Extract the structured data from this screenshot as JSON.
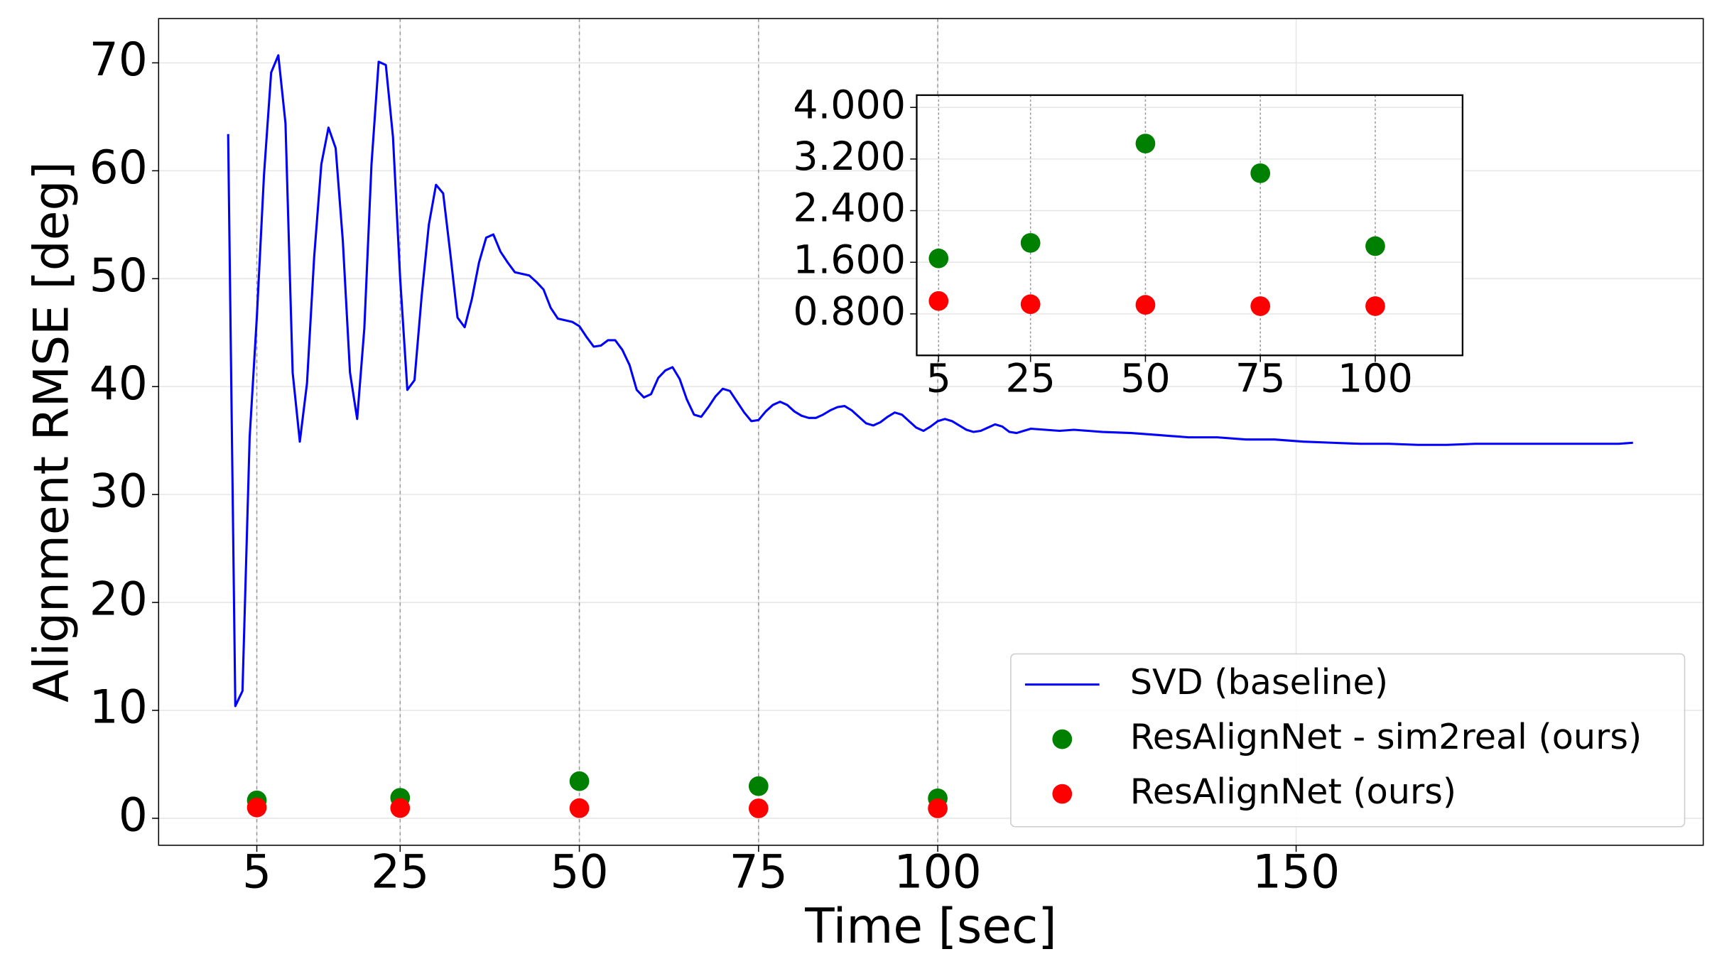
{
  "chart_data": [
    {
      "type": "line",
      "xlabel": "Time [sec]",
      "ylabel": "Alignment RMSE [deg]",
      "xlim": [
        -8.7,
        206.8
      ],
      "ylim": [
        -2.5,
        74.1
      ],
      "xticks": [
        5,
        25,
        50,
        75,
        100,
        150
      ],
      "yticks": [
        0,
        10,
        20,
        30,
        40,
        50,
        60,
        70
      ],
      "grid": true,
      "vlines": [
        5,
        25,
        50,
        75,
        100
      ],
      "legend": "lower right",
      "series": [
        {
          "name": "SVD (baseline)",
          "type": "line",
          "color": "#0000ff",
          "x": [
            1,
            2,
            3,
            4,
            5,
            6,
            7,
            8,
            9,
            10,
            11,
            12,
            13,
            14,
            15,
            16,
            17,
            18,
            19,
            20,
            21,
            22,
            23,
            24,
            25,
            26,
            27,
            28,
            29,
            30,
            31,
            32,
            33,
            34,
            35,
            36,
            37,
            38,
            39,
            40,
            41,
            43,
            44,
            45,
            46,
            47,
            49,
            50,
            51,
            52,
            53,
            54,
            55,
            56,
            57,
            58,
            59,
            60,
            61,
            62,
            63,
            64,
            65,
            66,
            67,
            68,
            69,
            70,
            71,
            72,
            73,
            74,
            75,
            76,
            77,
            78,
            79,
            80,
            81,
            82,
            83,
            84,
            85,
            86,
            87,
            88,
            89,
            90,
            91,
            92,
            93,
            94,
            95,
            96,
            97,
            98,
            99,
            100,
            101,
            102,
            103,
            104,
            105,
            106,
            107,
            108,
            109,
            110,
            111,
            112,
            113,
            115,
            117,
            119,
            121,
            123,
            127,
            131,
            135,
            139,
            143,
            147,
            151,
            155,
            159,
            163,
            167,
            171,
            175,
            179,
            183,
            187,
            191,
            195,
            197
          ],
          "values": [
            63.4,
            10.4,
            11.8,
            35.3,
            46.4,
            59.6,
            69.1,
            70.7,
            64.4,
            41.3,
            34.9,
            40.3,
            52,
            60.6,
            64,
            62.1,
            53.5,
            41.3,
            37,
            45.4,
            60.6,
            70.1,
            69.8,
            63.1,
            50,
            39.7,
            40.6,
            48.4,
            55,
            58.7,
            57.9,
            52.3,
            46.4,
            45.5,
            48.1,
            51.5,
            53.8,
            54.1,
            52.5,
            51.5,
            50.6,
            50.3,
            49.7,
            49,
            47.3,
            46.3,
            46,
            45.6,
            44.6,
            43.7,
            43.8,
            44.3,
            44.3,
            43.4,
            42,
            39.7,
            39,
            39.3,
            40.8,
            41.5,
            41.8,
            40.7,
            38.8,
            37.4,
            37.2,
            38.1,
            39.1,
            39.8,
            39.6,
            38.6,
            37.6,
            36.8,
            36.9,
            37.7,
            38.3,
            38.6,
            38.3,
            37.7,
            37.3,
            37.1,
            37.1,
            37.4,
            37.8,
            38.1,
            38.2,
            37.8,
            37.2,
            36.6,
            36.4,
            36.7,
            37.2,
            37.6,
            37.4,
            36.8,
            36.2,
            35.9,
            36.3,
            36.8,
            37,
            36.8,
            36.4,
            36,
            35.8,
            35.9,
            36.2,
            36.5,
            36.3,
            35.8,
            35.7,
            35.9,
            36.1,
            36,
            35.9,
            36,
            35.9,
            35.8,
            35.7,
            35.5,
            35.3,
            35.3,
            35.1,
            35.1,
            34.9,
            34.8,
            34.7,
            34.7,
            34.6,
            34.6,
            34.7,
            34.7,
            34.7,
            34.7,
            34.7,
            34.7,
            34.8
          ]
        },
        {
          "name": "ResAlignNet - sim2real (ours)",
          "type": "scatter",
          "color": "#008000",
          "x": [
            5,
            25,
            50,
            75,
            100
          ],
          "values": [
            1.66,
            1.9,
            3.44,
            2.98,
            1.85
          ]
        },
        {
          "name": "ResAlignNet (ours)",
          "type": "scatter",
          "color": "#ff0000",
          "x": [
            5,
            25,
            50,
            75,
            100
          ],
          "values": [
            1.0,
            0.95,
            0.94,
            0.92,
            0.92
          ]
        }
      ]
    },
    {
      "type": "scatter",
      "xlim": [
        0.24,
        119
      ],
      "ylim": [
        0.157,
        4.19
      ],
      "xticks": [
        5,
        25,
        50,
        75,
        100
      ],
      "yticks": [
        {
          "value": 0.8,
          "label": "0.800"
        },
        {
          "value": 1.6,
          "label": "1.600"
        },
        {
          "value": 2.4,
          "label": "2.400"
        },
        {
          "value": 3.2,
          "label": "3.200"
        },
        {
          "value": 4.0,
          "label": "4.000"
        }
      ],
      "grid": true
    }
  ]
}
